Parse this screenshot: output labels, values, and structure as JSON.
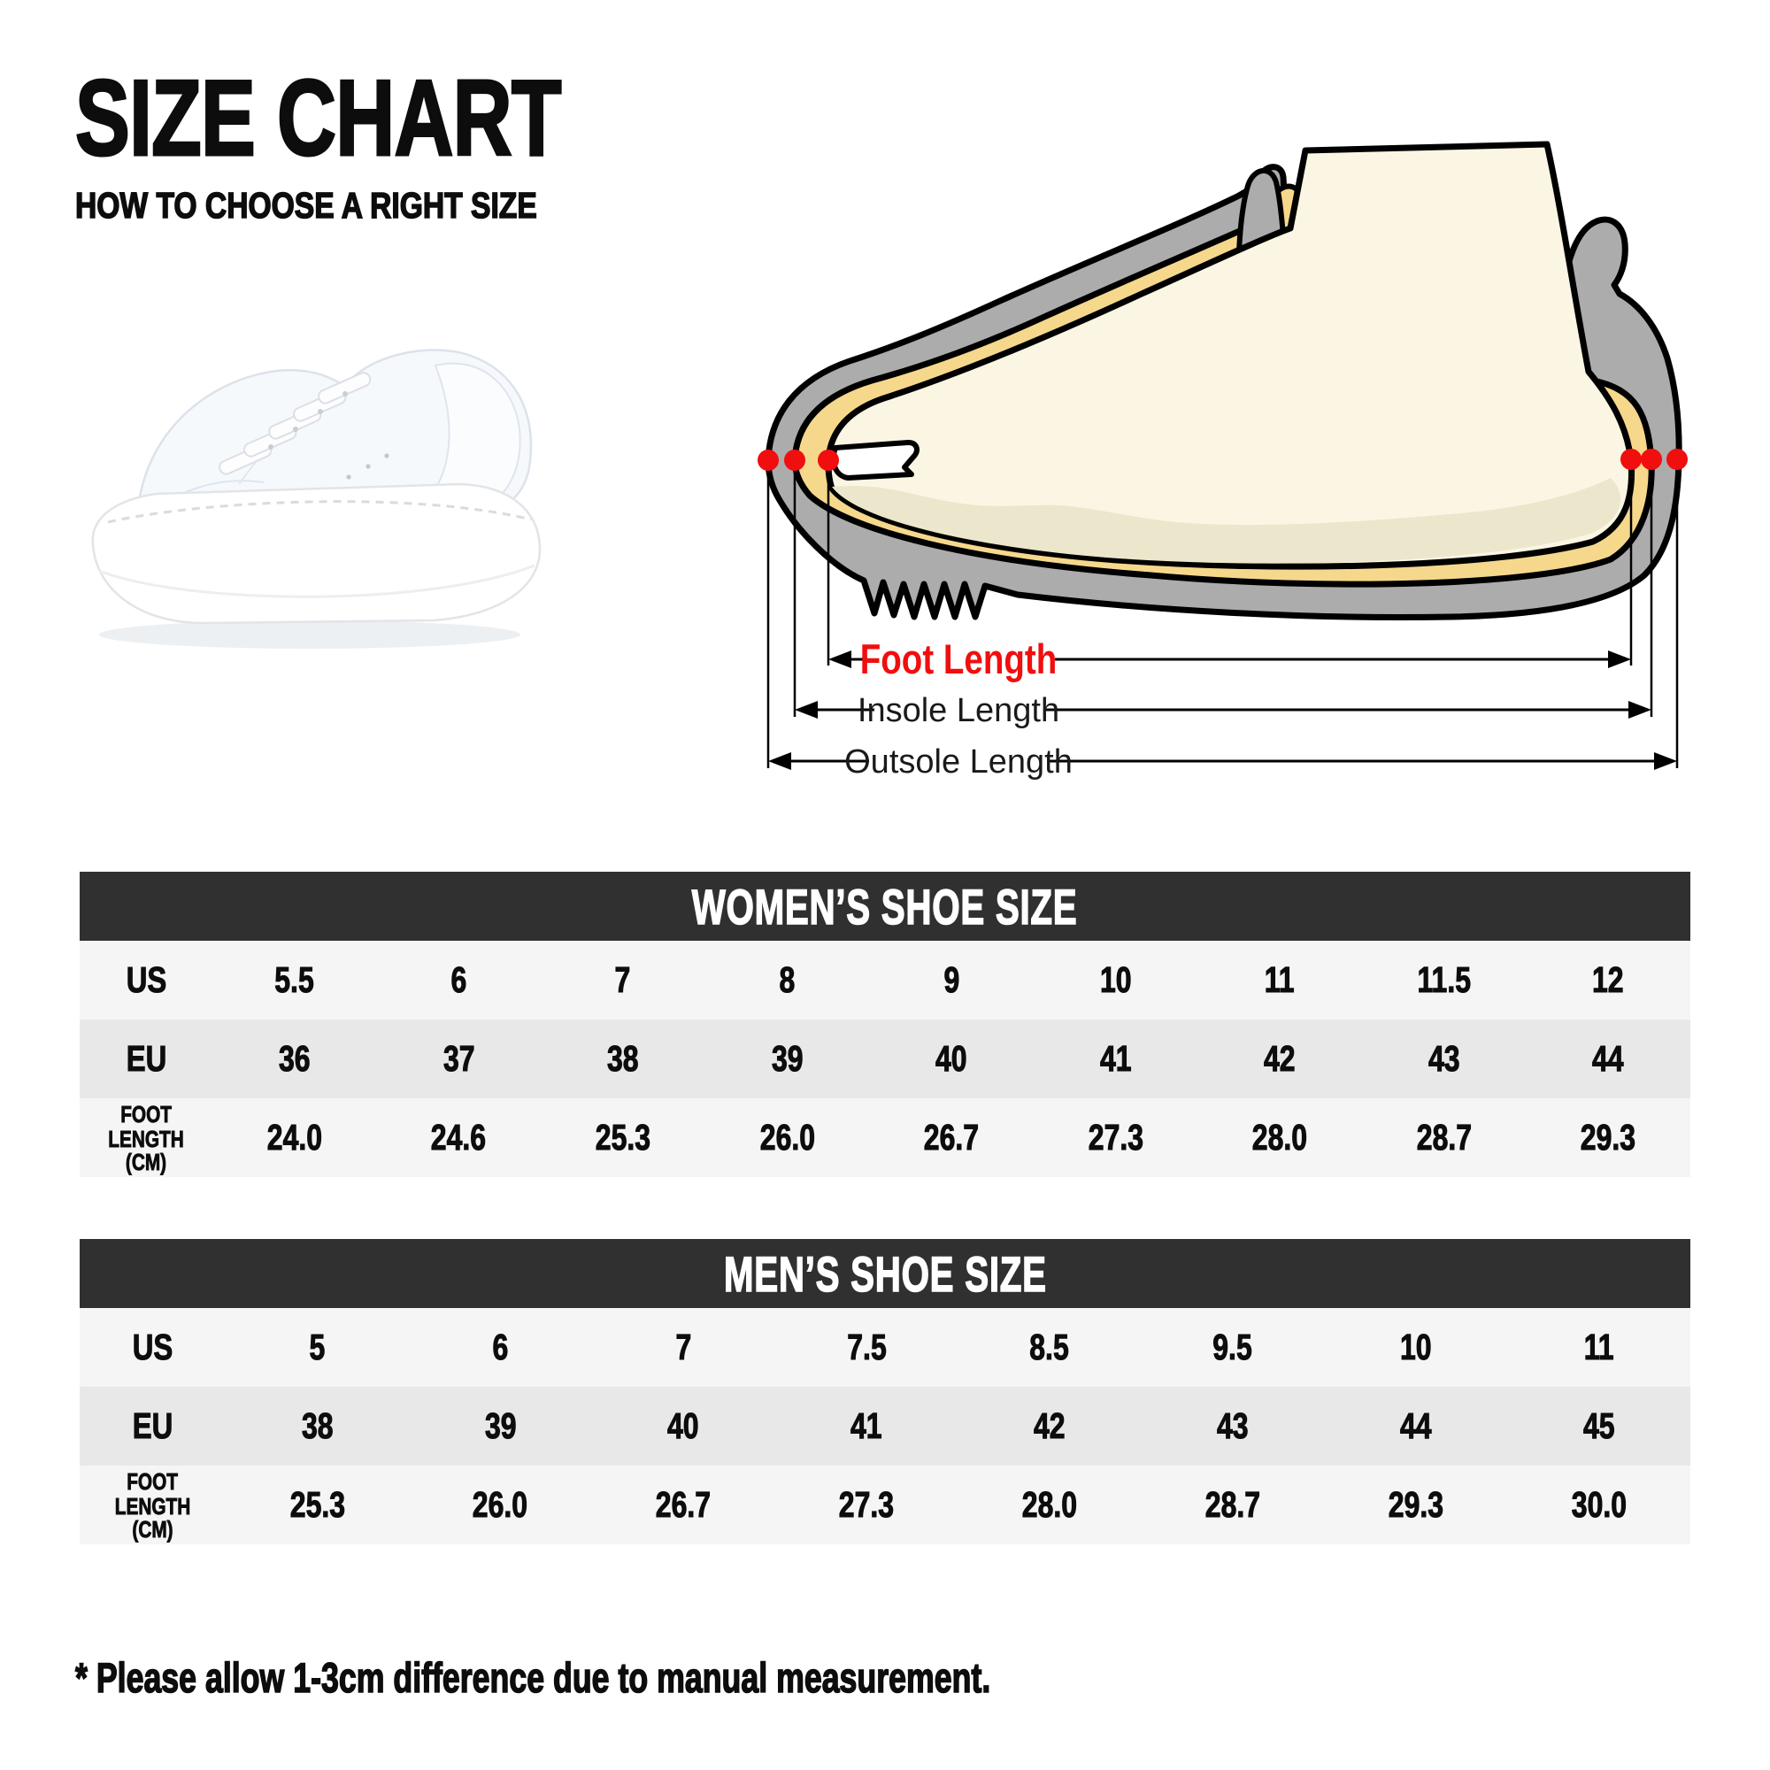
{
  "header": {
    "title": "SIZE CHART",
    "subtitle": "HOW TO CHOOSE A RIGHT SIZE"
  },
  "diagram": {
    "foot_length_label": "Foot Length",
    "insole_length_label": "Insole Length",
    "outsole_length_label": "Outsole Length"
  },
  "tables": {
    "women": {
      "title": "WOMEN’S SHOE SIZE",
      "rows": [
        {
          "label": "US",
          "values": [
            "5.5",
            "6",
            "7",
            "8",
            "9",
            "10",
            "11",
            "11.5",
            "12"
          ]
        },
        {
          "label": "EU",
          "values": [
            "36",
            "37",
            "38",
            "39",
            "40",
            "41",
            "42",
            "43",
            "44"
          ]
        },
        {
          "label_lines": [
            "FOOT",
            "LENGTH (CM)"
          ],
          "values": [
            "24.0",
            "24.6",
            "25.3",
            "26.0",
            "26.7",
            "27.3",
            "28.0",
            "28.7",
            "29.3"
          ]
        }
      ]
    },
    "men": {
      "title": "MEN’S SHOE SIZE",
      "rows": [
        {
          "label": "US",
          "values": [
            "5",
            "6",
            "7",
            "7.5",
            "8.5",
            "9.5",
            "10",
            "11"
          ]
        },
        {
          "label": "EU",
          "values": [
            "38",
            "39",
            "40",
            "41",
            "42",
            "43",
            "44",
            "45"
          ]
        },
        {
          "label_lines": [
            "FOOT",
            "LENGTH (CM)"
          ],
          "values": [
            "25.3",
            "26.0",
            "26.7",
            "27.3",
            "28.0",
            "28.7",
            "29.3",
            "30.0"
          ]
        }
      ]
    }
  },
  "footnote": "* Please allow 1-3cm difference due to manual measurement.",
  "colors": {
    "red": "#F10E0E",
    "table_header_bg": "#303030",
    "row_light": "#F5F5F5",
    "row_mid": "#E8E8E8",
    "text_black": "#0D0D0D",
    "shoe_gray": "#ACACAC",
    "insole_yellow": "#F6D88C",
    "foot_cream": "#FBF6E3",
    "foot_shadow": "#ECE6CC",
    "outline": "#000000"
  },
  "chart_data": [
    {
      "type": "table",
      "title": "WOMEN’S SHOE SIZE",
      "row_headers": [
        "US",
        "EU",
        "FOOT LENGTH (CM)"
      ],
      "rows": {
        "US": [
          5.5,
          6,
          7,
          8,
          9,
          10,
          11,
          11.5,
          12
        ],
        "EU": [
          36,
          37,
          38,
          39,
          40,
          41,
          42,
          43,
          44
        ],
        "FOOT LENGTH (CM)": [
          24.0,
          24.6,
          25.3,
          26.0,
          26.7,
          27.3,
          28.0,
          28.7,
          29.3
        ]
      }
    },
    {
      "type": "table",
      "title": "MEN’S SHOE SIZE",
      "row_headers": [
        "US",
        "EU",
        "FOOT LENGTH (CM)"
      ],
      "rows": {
        "US": [
          5,
          6,
          7,
          7.5,
          8.5,
          9.5,
          10,
          11
        ],
        "EU": [
          38,
          39,
          40,
          41,
          42,
          43,
          44,
          45
        ],
        "FOOT LENGTH (CM)": [
          25.3,
          26.0,
          26.7,
          27.3,
          28.0,
          28.7,
          29.3,
          30.0
        ]
      }
    }
  ]
}
